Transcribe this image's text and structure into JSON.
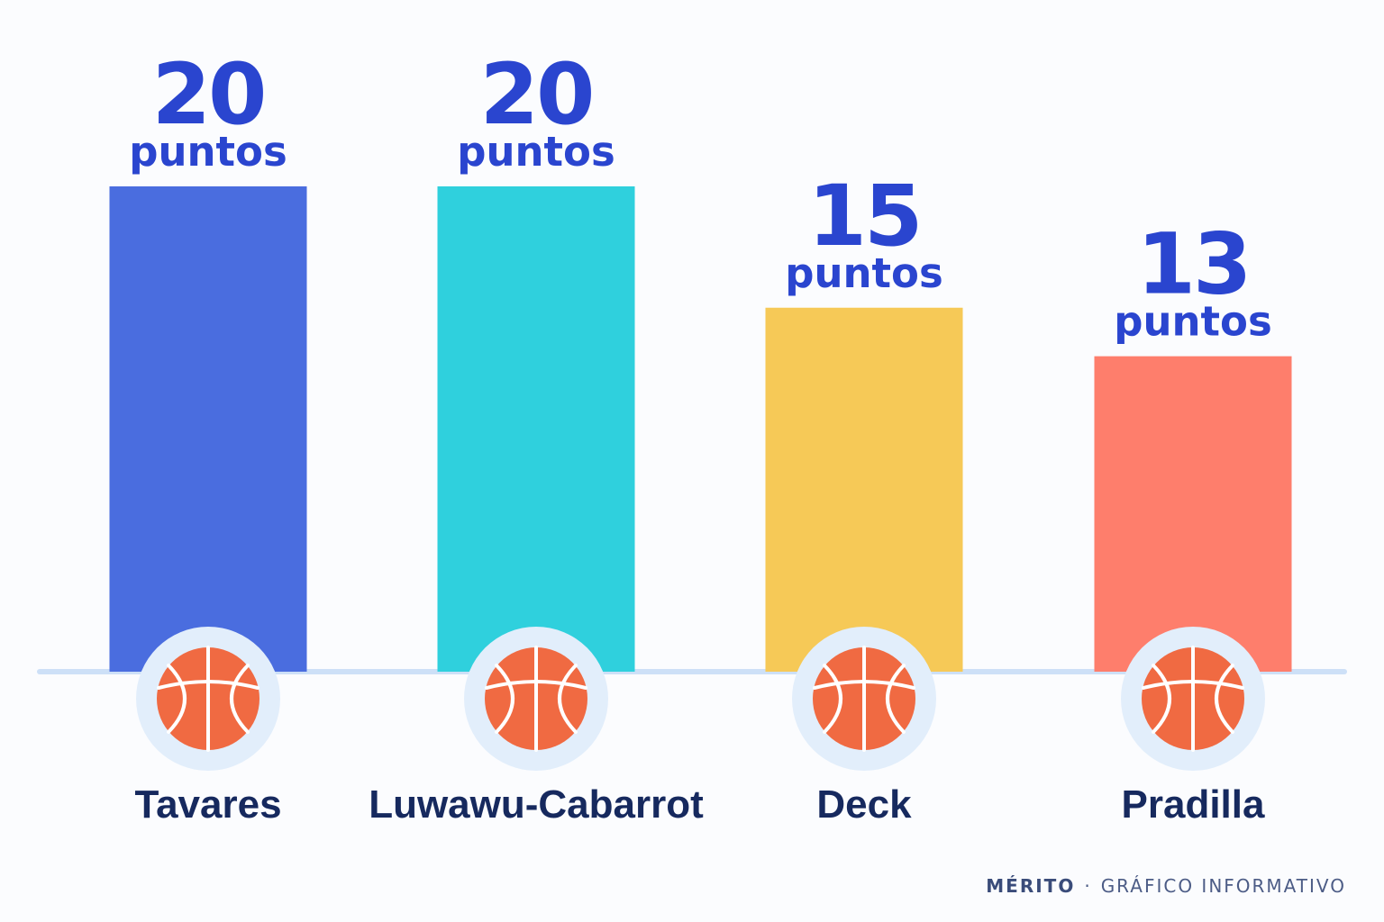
{
  "chart_data": {
    "type": "bar",
    "title": "",
    "xlabel": "",
    "ylabel": "",
    "ylim": [
      0,
      20
    ],
    "unit": "puntos",
    "categories": [
      "Tavares",
      "Luwawu-Cabarrot",
      "Deck",
      "Pradilla"
    ],
    "values": [
      20,
      20,
      15,
      13
    ],
    "value_labels": [
      "20",
      "20",
      "15",
      "13"
    ],
    "colors": [
      "#4a6ddf",
      "#2fd0dd",
      "#f6c957",
      "#fe7e6c"
    ],
    "icon": "basketball-icon",
    "grid": false,
    "legend": "none"
  },
  "footer": {
    "brand": "MÉRITO",
    "separator": "·",
    "text": "GRÁFICO INFORMATIVO"
  },
  "colors": {
    "background": "#fbfcfe",
    "value_text": "#2a45cf",
    "label_text": "#16295e",
    "baseline": "#cde0f7",
    "icon_ring": "#e2eefb",
    "ball": "#f06a42"
  }
}
